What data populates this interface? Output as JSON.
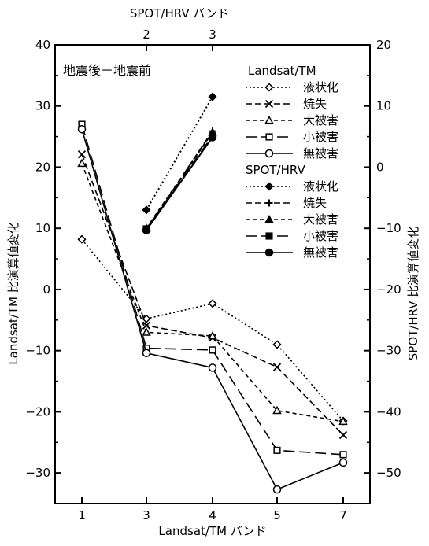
{
  "chart_data": {
    "type": "line",
    "annotation": "地震後－地震前",
    "xlabel_bottom": "Landsat/TM バンド",
    "xlabel_top": "SPOT/HRV バンド",
    "ylabel_left": "Landsat/TM 比演算値変化",
    "ylabel_right": "SPOT/HRV 比演算値変化",
    "x_categories_bottom": [
      "1",
      "3",
      "4",
      "5",
      "7"
    ],
    "x_categories_top": [
      "2",
      "3"
    ],
    "ylim_left": [
      -35,
      40
    ],
    "ylim_right": [
      -55,
      20
    ],
    "yticks_left": [
      40,
      30,
      20,
      10,
      0,
      -10,
      -20,
      -30
    ],
    "yticks_right": [
      20,
      10,
      0,
      -10,
      -20,
      -30,
      -40,
      -50
    ],
    "grid": false,
    "legend_groups": [
      {
        "title": "Landsat/TM",
        "axis": "left",
        "series_indices": [
          0,
          1,
          2,
          3,
          4
        ]
      },
      {
        "title": "SPOT/HRV",
        "axis": "right",
        "series_indices": [
          5,
          6,
          7,
          8,
          9
        ]
      }
    ],
    "series": [
      {
        "name": "液状化",
        "group": "Landsat/TM",
        "dash": "dotted",
        "marker": "open-diamond",
        "x": [
          "1",
          "3",
          "4",
          "5",
          "7"
        ],
        "values": [
          8.2,
          -4.8,
          -2.3,
          -9.0,
          -21.5
        ]
      },
      {
        "name": "焼失",
        "group": "Landsat/TM",
        "dash": "dashed",
        "marker": "x",
        "x": [
          "1",
          "3",
          "4",
          "5",
          "7"
        ],
        "values": [
          22.1,
          -5.9,
          -7.9,
          -12.7,
          -23.8
        ]
      },
      {
        "name": "大被害",
        "group": "Landsat/TM",
        "dash": "short-dash",
        "marker": "open-triangle",
        "x": [
          "1",
          "3",
          "4",
          "5",
          "7"
        ],
        "values": [
          20.6,
          -7.0,
          -7.6,
          -19.8,
          -21.6
        ]
      },
      {
        "name": "小被害",
        "group": "Landsat/TM",
        "dash": "long-dash",
        "marker": "open-square",
        "x": [
          "1",
          "3",
          "4",
          "5",
          "7"
        ],
        "values": [
          27.0,
          -9.6,
          -9.9,
          -26.3,
          -27.0
        ]
      },
      {
        "name": "無被害",
        "group": "Landsat/TM",
        "dash": "solid",
        "marker": "open-circle",
        "x": [
          "1",
          "3",
          "4",
          "5",
          "7"
        ],
        "values": [
          26.2,
          -10.4,
          -12.8,
          -32.7,
          -28.3
        ]
      },
      {
        "name": "液状化",
        "group": "SPOT/HRV",
        "dash": "dotted",
        "marker": "filled-diamond",
        "x": [
          "2",
          "3"
        ],
        "values": [
          -7.0,
          11.5
        ]
      },
      {
        "name": "焼失",
        "group": "SPOT/HRV",
        "dash": "dashed",
        "marker": "plus",
        "x": [
          "2",
          "3"
        ],
        "values": [
          -10.3,
          5.9
        ]
      },
      {
        "name": "大被害",
        "group": "SPOT/HRV",
        "dash": "short-dash",
        "marker": "filled-triangle",
        "x": [
          "2",
          "3"
        ],
        "values": [
          -10.0,
          5.7
        ]
      },
      {
        "name": "小被害",
        "group": "SPOT/HRV",
        "dash": "long-dash",
        "marker": "filled-square",
        "x": [
          "2",
          "3"
        ],
        "values": [
          -10.1,
          5.1
        ]
      },
      {
        "name": "無被害",
        "group": "SPOT/HRV",
        "dash": "solid",
        "marker": "filled-circle",
        "x": [
          "2",
          "3"
        ],
        "values": [
          -10.3,
          4.9
        ]
      }
    ]
  }
}
